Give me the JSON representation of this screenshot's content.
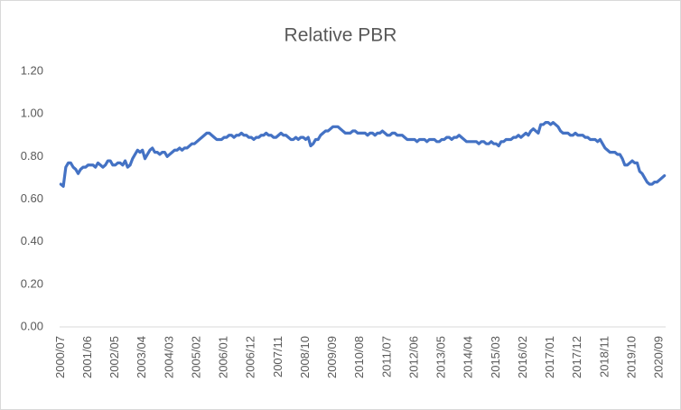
{
  "chart_data": {
    "type": "line",
    "title": "Relative PBR",
    "categories": [
      "2000/07",
      null,
      null,
      null,
      null,
      null,
      null,
      null,
      null,
      null,
      null,
      "2001/06",
      null,
      null,
      null,
      null,
      null,
      null,
      null,
      null,
      null,
      null,
      "2002/05",
      null,
      null,
      null,
      null,
      null,
      null,
      null,
      null,
      null,
      null,
      "2003/04",
      null,
      null,
      null,
      null,
      null,
      null,
      null,
      null,
      null,
      null,
      "2004/03",
      null,
      null,
      null,
      null,
      null,
      null,
      null,
      null,
      null,
      null,
      "2005/02",
      null,
      null,
      null,
      null,
      null,
      null,
      null,
      null,
      null,
      null,
      "2006/01",
      null,
      null,
      null,
      null,
      null,
      null,
      null,
      null,
      null,
      null,
      "2006/12",
      null,
      null,
      null,
      null,
      null,
      null,
      null,
      null,
      null,
      null,
      "2007/11",
      null,
      null,
      null,
      null,
      null,
      null,
      null,
      null,
      null,
      null,
      "2008/10",
      null,
      null,
      null,
      null,
      null,
      null,
      null,
      null,
      null,
      null,
      "2009/09",
      null,
      null,
      null,
      null,
      null,
      null,
      null,
      null,
      null,
      null,
      "2010/08",
      null,
      null,
      null,
      null,
      null,
      null,
      null,
      null,
      null,
      null,
      "2011/07",
      null,
      null,
      null,
      null,
      null,
      null,
      null,
      null,
      null,
      null,
      "2012/06",
      null,
      null,
      null,
      null,
      null,
      null,
      null,
      null,
      null,
      null,
      "2013/05",
      null,
      null,
      null,
      null,
      null,
      null,
      null,
      null,
      null,
      null,
      "2014/04",
      null,
      null,
      null,
      null,
      null,
      null,
      null,
      null,
      null,
      null,
      "2015/03",
      null,
      null,
      null,
      null,
      null,
      null,
      null,
      null,
      null,
      null,
      "2016/02",
      null,
      null,
      null,
      null,
      null,
      null,
      null,
      null,
      null,
      null,
      "2017/01",
      null,
      null,
      null,
      null,
      null,
      null,
      null,
      null,
      null,
      null,
      "2017/12",
      null,
      null,
      null,
      null,
      null,
      null,
      null,
      null,
      null,
      null,
      "2018/11",
      null,
      null,
      null,
      null,
      null,
      null,
      null,
      null,
      null,
      null,
      "2019/10",
      null,
      null,
      null,
      null,
      null,
      null,
      null,
      null,
      null,
      null,
      "2020/09",
      null,
      null
    ],
    "series": [
      {
        "color": "#4472c4",
        "values": [
          0.67,
          0.66,
          0.75,
          0.77,
          0.77,
          0.75,
          0.74,
          0.72,
          0.74,
          0.75,
          0.75,
          0.76,
          0.76,
          0.76,
          0.75,
          0.77,
          0.76,
          0.75,
          0.76,
          0.78,
          0.78,
          0.76,
          0.76,
          0.77,
          0.77,
          0.76,
          0.78,
          0.75,
          0.76,
          0.79,
          0.81,
          0.83,
          0.82,
          0.83,
          0.79,
          0.81,
          0.83,
          0.84,
          0.82,
          0.82,
          0.81,
          0.82,
          0.82,
          0.8,
          0.81,
          0.82,
          0.83,
          0.83,
          0.84,
          0.83,
          0.84,
          0.84,
          0.85,
          0.86,
          0.86,
          0.87,
          0.88,
          0.89,
          0.9,
          0.91,
          0.91,
          0.9,
          0.89,
          0.88,
          0.88,
          0.88,
          0.89,
          0.89,
          0.9,
          0.9,
          0.89,
          0.9,
          0.9,
          0.91,
          0.9,
          0.9,
          0.89,
          0.89,
          0.88,
          0.89,
          0.89,
          0.9,
          0.9,
          0.91,
          0.9,
          0.9,
          0.89,
          0.89,
          0.9,
          0.91,
          0.9,
          0.9,
          0.89,
          0.88,
          0.88,
          0.89,
          0.88,
          0.89,
          0.89,
          0.88,
          0.89,
          0.85,
          0.86,
          0.88,
          0.88,
          0.9,
          0.91,
          0.92,
          0.92,
          0.93,
          0.94,
          0.94,
          0.94,
          0.93,
          0.92,
          0.91,
          0.91,
          0.91,
          0.92,
          0.92,
          0.91,
          0.91,
          0.91,
          0.91,
          0.9,
          0.91,
          0.91,
          0.9,
          0.91,
          0.91,
          0.92,
          0.91,
          0.9,
          0.9,
          0.91,
          0.91,
          0.9,
          0.9,
          0.9,
          0.89,
          0.88,
          0.88,
          0.88,
          0.88,
          0.87,
          0.88,
          0.88,
          0.88,
          0.87,
          0.88,
          0.88,
          0.88,
          0.87,
          0.87,
          0.88,
          0.88,
          0.89,
          0.89,
          0.88,
          0.89,
          0.89,
          0.9,
          0.89,
          0.88,
          0.87,
          0.87,
          0.87,
          0.87,
          0.87,
          0.86,
          0.87,
          0.87,
          0.86,
          0.86,
          0.87,
          0.86,
          0.86,
          0.85,
          0.87,
          0.87,
          0.88,
          0.88,
          0.88,
          0.89,
          0.89,
          0.9,
          0.89,
          0.9,
          0.91,
          0.9,
          0.92,
          0.93,
          0.92,
          0.91,
          0.95,
          0.95,
          0.96,
          0.96,
          0.95,
          0.96,
          0.95,
          0.94,
          0.92,
          0.91,
          0.91,
          0.91,
          0.9,
          0.9,
          0.91,
          0.9,
          0.9,
          0.9,
          0.89,
          0.89,
          0.88,
          0.88,
          0.88,
          0.87,
          0.88,
          0.86,
          0.84,
          0.83,
          0.82,
          0.82,
          0.82,
          0.81,
          0.81,
          0.79,
          0.76,
          0.76,
          0.77,
          0.78,
          0.77,
          0.77,
          0.73,
          0.72,
          0.7,
          0.68,
          0.67,
          0.67,
          0.68,
          0.68,
          0.69,
          0.7,
          0.71
        ]
      }
    ],
    "ylim": [
      0,
      1.2
    ],
    "yticks": [
      {
        "value": 0,
        "label": "0.00"
      },
      {
        "value": 0.2,
        "label": "0.20"
      },
      {
        "value": 0.4,
        "label": "0.40"
      },
      {
        "value": 0.6,
        "label": "0.60"
      },
      {
        "value": 0.8,
        "label": "0.80"
      },
      {
        "value": 1,
        "label": "1.00"
      },
      {
        "value": 1.2,
        "label": "1.20"
      }
    ],
    "grid": false
  }
}
